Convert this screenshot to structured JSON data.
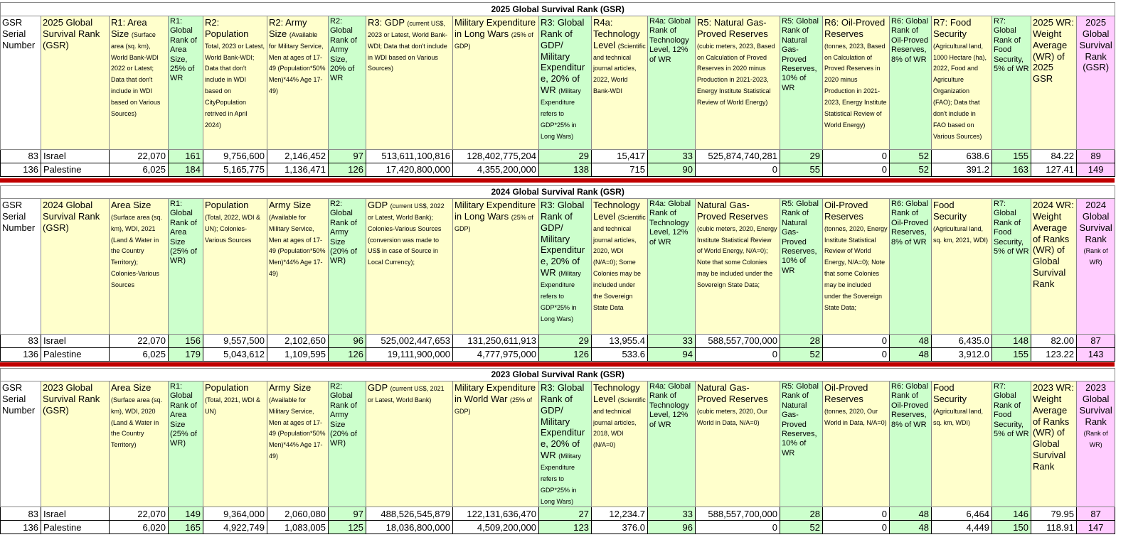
{
  "sections": [
    {
      "title": "2025 Global Survival Rank (GSR)",
      "headers": [
        "GSR Serial Number",
        "2025 Global Survival Rank (GSR)",
        {
          "main": "R1: Area Size",
          "note": "(Surface area (sq. km), World Bank-WDI 2022 or Latest; Data that don't include in WDI based on Various Sources)"
        },
        "R1: Global Rank of Area Size, 25% of WR",
        {
          "main": "R2: Population",
          "note": "Total, 2023 or Latest, World Bank-WDI; Data that don't include in WDI based on CityPopulation retrived in April 2024)"
        },
        {
          "main": "R2: Army Size",
          "note": "(Available for Military Service, Men at ages of 17-49 (Population*50% Men)*44% Age 17-49)"
        },
        "R2: Global Rank of Army Size, 20% of WR",
        {
          "main": "R3: GDP",
          "note": "(current US$, 2023 or Latest, World Bank-WDI; Data that don't include in WDI based on Various Sources)"
        },
        {
          "main": "Military Expenditure in Long Wars",
          "note": "(25% of GDP)"
        },
        {
          "main": "R3: Global Rank of GDP/ Military Expenditure, 20% of WR",
          "note": "(Military Expenditure refers to GDP*25% in Long Wars)"
        },
        {
          "main": "R4a: Technology Level",
          "note": "(Scientific and technical journal articles, 2022, World Bank-WDI"
        },
        "R4a: Global Rank of Technology Level, 12% of WR",
        {
          "main": "R5: Natural Gas-Proved Reserves",
          "note": "(cubic meters, 2023, Based on Calculation of Proved Reserves in 2020 minus Production in 2021-2023, Energy Institute Statistical Review of World Energy)"
        },
        "R5: Global Rank of Natural Gas-Proved Reserves, 10% of WR",
        {
          "main": "R6: Oil-Proved Reserves",
          "note": "(tonnes, 2023, Based on Calculation of Proved Reserves in 2020 minus Production in 2021-2023, Energy Institute Statistical Review of World Energy)"
        },
        "R6: Global Rank of Oil-Proved Reserves, 8% of WR",
        {
          "main": "R7: Food Security",
          "note": "(Agricultural land, 1000 Hectare (ha), 2022, Food and Agriculture Organization (FAO); Data that don't include in FAO based on Various Sources)"
        },
        "R7: Global Rank of Food Security, 5% of WR",
        "2025 WR: Weight Average (WR) of 2025 GSR",
        "2025 Global Survival Rank (GSR)"
      ],
      "rows": [
        [
          "83",
          "Israel",
          "22,070",
          "161",
          "9,756,600",
          "2,146,452",
          "97",
          "513,611,100,816",
          "128,402,775,204",
          "29",
          "15,417",
          "33",
          "525,874,740,281",
          "29",
          "0",
          "52",
          "638.6",
          "155",
          "84.22",
          "89"
        ],
        [
          "136",
          "Palestine",
          "6,025",
          "184",
          "5,165,775",
          "1,136,471",
          "126",
          "17,420,800,000",
          "4,355,200,000",
          "138",
          "715",
          "90",
          "0",
          "55",
          "0",
          "52",
          "391.2",
          "163",
          "127.41",
          "149"
        ]
      ]
    },
    {
      "title": "2024 Global Survival Rank (GSR)",
      "headers": [
        "GSR Serial Number",
        "2024 Global Survival Rank (GSR)",
        {
          "main": "Area Size",
          "note": "(Surface area (sq. km), WDI, 2021 (Land & Water in the Country Territory); Colonies-Various Sources"
        },
        "R1: Global Rank of Area Size (25% of WR)",
        {
          "main": "Population",
          "note": "(Total, 2022, WDI & UN); Colonies-Various Sources"
        },
        {
          "main": "Army Size",
          "note": "(Available for Military Service, Men at ages of 17-49 (Population*50% Men)*44% Age 17-49)"
        },
        "R2: Global Rank of Army Size (20% of WR)",
        {
          "main": "GDP",
          "note": "(current US$, 2022 or Latest, World Bank); Colonies-Various Sources (conversion was made to US$ in case of Source in Local Currency);"
        },
        {
          "main": "Military Expenditure in Long Wars",
          "note": "(25% of GDP)"
        },
        {
          "main": "R3: Global Rank of GDP/ Military Expenditure, 20% of WR",
          "note": "(Military Expenditure refers to GDP*25% in Long Wars)"
        },
        {
          "main": "Technology Level",
          "note": "(Scientific and technical journal articles, 2020, WDI (N/A=0); Some Colonies may be included under the Sovereign State Data"
        },
        "R4a: Global Rank of Technology Level, 12% of WR",
        {
          "main": "Natural Gas-Proved Reserves",
          "note": "(cubic meters, 2020, Energy Institute Statistical Review of World Energy, N/A=0); Note that some Colonies may be included under the Sovereign State Data;"
        },
        "R5: Global Rank of Natural Gas-Proved Reserves, 10% of WR",
        {
          "main": "Oil-Proved Reserves",
          "note": "(tonnes, 2020, Energy Institute Statistical Review of World Energy, N/A=0); Note that some Colonies may be included under the Sovereign State Data;"
        },
        "R6: Global Rank of Oil-Proved Reserves, 8% of WR",
        {
          "main": "Food Security",
          "note": "(Agricultural land, sq. km, 2021, WDI)"
        },
        "R7: Global Rank of Food Security, 5% of WR",
        "2024 WR: Weight Average of Ranks (WR) of Global Survival Rank",
        {
          "main": "2024 Global Survival Rank",
          "note": "(Rank of WR)"
        }
      ],
      "rows": [
        [
          "83",
          "Israel",
          "22,070",
          "156",
          "9,557,500",
          "2,102,650",
          "96",
          "525,002,447,653",
          "131,250,611,913",
          "29",
          "13,955.4",
          "33",
          "588,557,700,000",
          "28",
          "0",
          "48",
          "6,435.0",
          "148",
          "82.00",
          "87"
        ],
        [
          "136",
          "Palestine",
          "6,025",
          "179",
          "5,043,612",
          "1,109,595",
          "126",
          "19,111,900,000",
          "4,777,975,000",
          "126",
          "533.6",
          "94",
          "0",
          "52",
          "0",
          "48",
          "3,912.0",
          "155",
          "123.22",
          "143"
        ]
      ]
    },
    {
      "title": "2023 Global Survival Rank (GSR)",
      "headers": [
        "GSR Serial Number",
        "2023 Global Survival Rank (GSR)",
        {
          "main": "Area Size",
          "note": "(Surface area (sq. km), WDI, 2020 (Land & Water in the Country Territory)"
        },
        "R1: Global Rank of Area Size (25% of WR)",
        {
          "main": "Population",
          "note": "(Total, 2021, WDI & UN)"
        },
        {
          "main": "Army Size",
          "note": "(Available for Military Service, Men at ages of 17-49 (Population*50% Men)*44% Age 17-49)"
        },
        "R2: Global Rank of Army Size (20% of WR)",
        {
          "main": "GDP",
          "note": "(current US$, 2021 or Latest, World Bank)"
        },
        {
          "main": "Military Expenditure in World War",
          "note": "(25% of GDP)"
        },
        {
          "main": "R3: Global Rank of GDP/ Military Expenditure, 20% of WR",
          "note": "(Military Expenditure refers to GDP*25% in Long Wars)"
        },
        {
          "main": "Technology Level",
          "note": "(Scientific and technical journal articles, 2018, WDI (N/A=0)"
        },
        "R4a: Global Rank of Technology Level, 12% of WR",
        {
          "main": "Natural Gas-Proved Reserves",
          "note": "(cubic meters, 2020, Our World in Data, N/A=0)"
        },
        "R5: Global Rank of Natural Gas-Proved Reserves, 10% of WR",
        {
          "main": "Oil-Proved Reserves",
          "note": "(tonnes, 2020, Our World in Data, N/A=0)"
        },
        "R6: Global Rank of Oil-Proved Reserves, 8% of WR",
        {
          "main": "Food Security",
          "note": "(Agricultural land, sq. km, WDI)"
        },
        "R7: Global Rank of Food Security, 5% of WR",
        "2023 WR: Weight Average of Ranks (WR) of Global Survival Rank",
        {
          "main": "2023 Global Survival Rank",
          "note": "(Rank of WR)"
        }
      ],
      "rows": [
        [
          "83",
          "Israel",
          "22,070",
          "149",
          "9,364,000",
          "2,060,080",
          "97",
          "488,526,545,879",
          "122,131,636,470",
          "27",
          "12,234.7",
          "33",
          "588,557,700,000",
          "28",
          "0",
          "48",
          "6,464",
          "146",
          "79.95",
          "87"
        ],
        [
          "136",
          "Palestine",
          "6,020",
          "165",
          "4,922,749",
          "1,083,005",
          "125",
          "18,036,800,000",
          "4,509,200,000",
          "123",
          "376.0",
          "96",
          "0",
          "52",
          "0",
          "48",
          "4,449",
          "150",
          "118.91",
          "147"
        ]
      ]
    }
  ]
}
